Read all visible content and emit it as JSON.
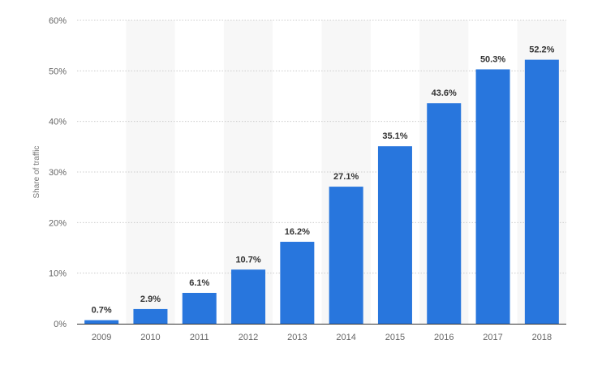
{
  "chart_data": {
    "type": "bar",
    "categories": [
      "2009",
      "2010",
      "2011",
      "2012",
      "2013",
      "2014",
      "2015",
      "2016",
      "2017",
      "2018"
    ],
    "values": [
      0.7,
      2.9,
      6.1,
      10.7,
      16.2,
      27.1,
      35.1,
      43.6,
      50.3,
      52.2
    ],
    "data_labels": [
      "0.7%",
      "2.9%",
      "6.1%",
      "10.7%",
      "16.2%",
      "27.1%",
      "35.1%",
      "43.6%",
      "50.3%",
      "52.2%"
    ],
    "title": "",
    "xlabel": "",
    "ylabel": "Share of traffic",
    "ylim": [
      0,
      60
    ],
    "yticks": [
      0,
      10,
      20,
      30,
      40,
      50,
      60
    ],
    "ytick_labels": [
      "0%",
      "10%",
      "20%",
      "30%",
      "40%",
      "50%",
      "60%"
    ],
    "grid": true,
    "bar_color": "#2876dd",
    "band_color": "#f7f7f7",
    "grid_color": "#cccccc"
  }
}
